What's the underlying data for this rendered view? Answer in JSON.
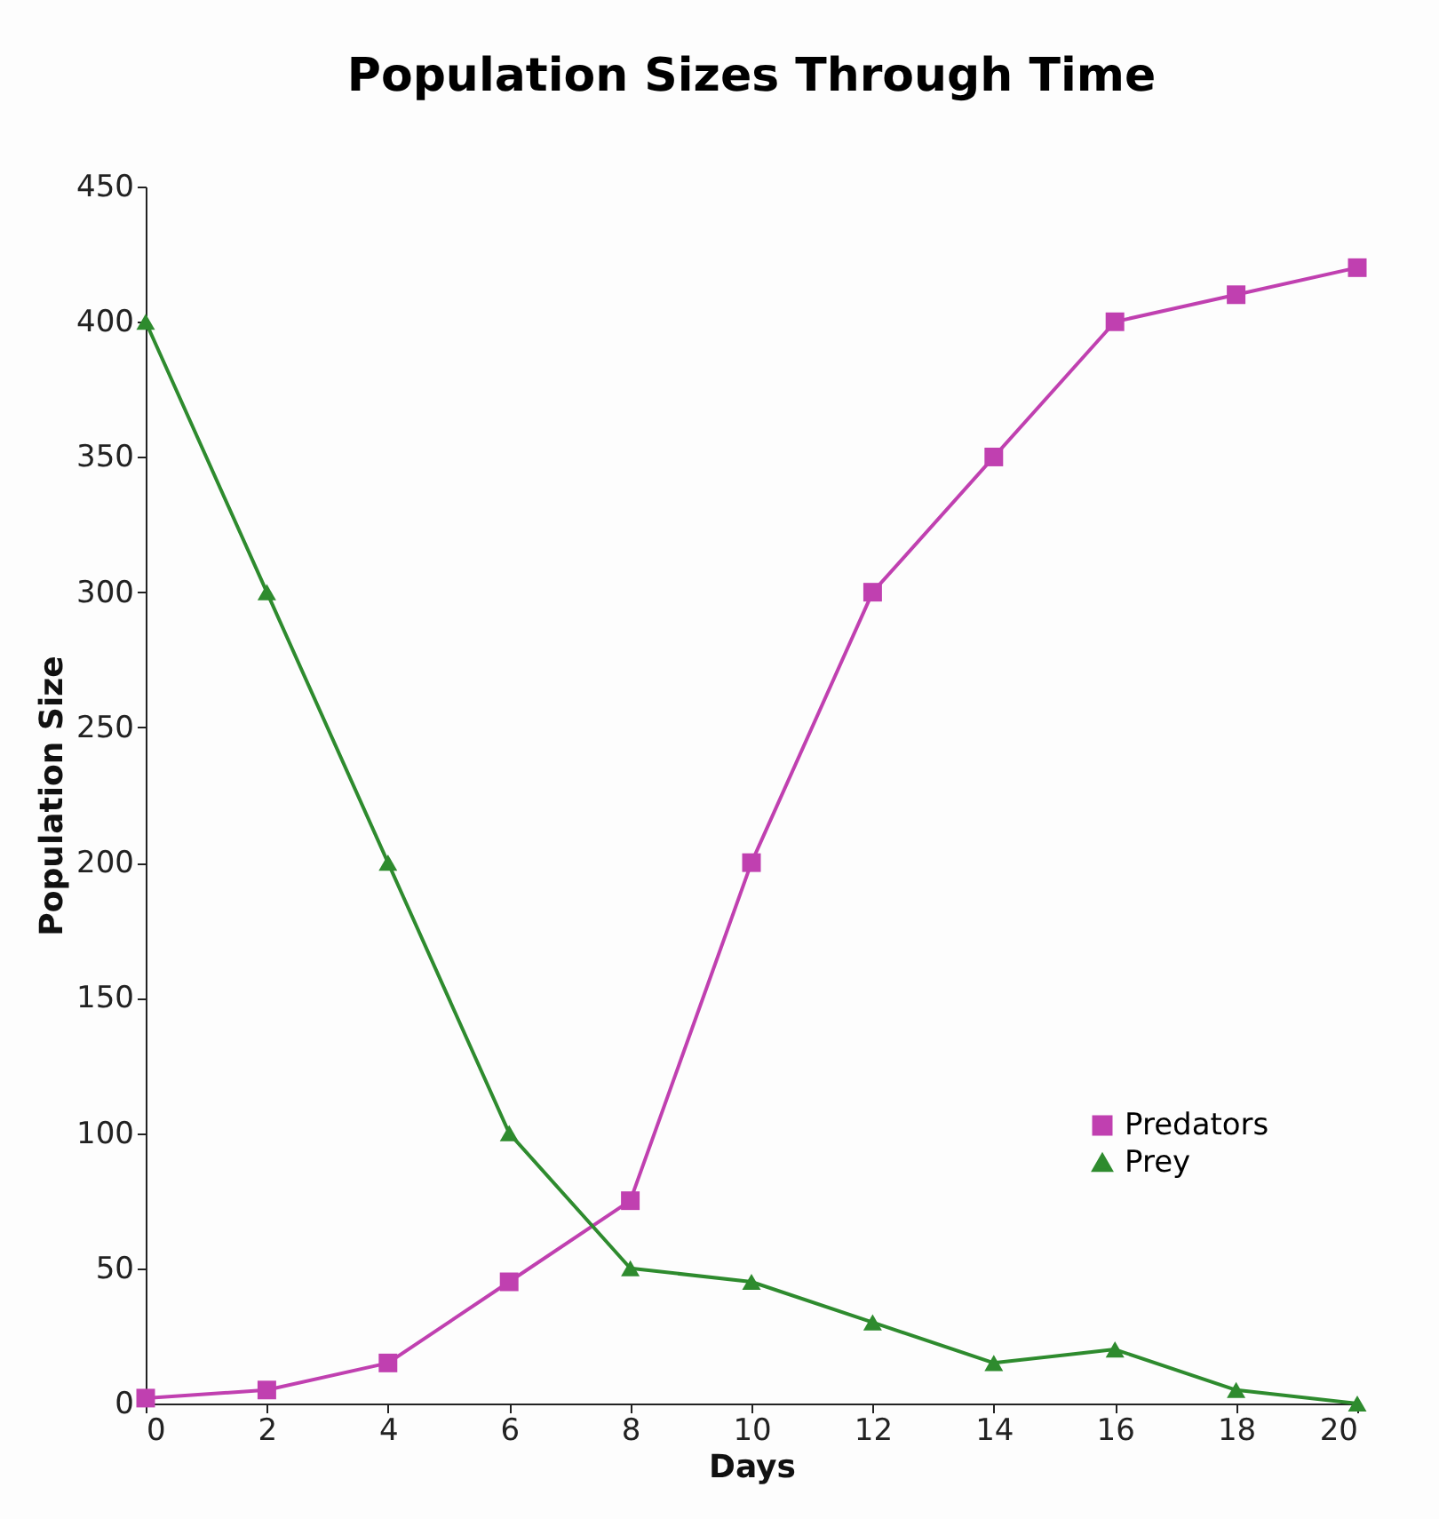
{
  "chart_data": {
    "type": "line",
    "title": "Population Sizes Through Time",
    "xlabel": "Days",
    "ylabel": "Population Size",
    "x": [
      0,
      2,
      4,
      6,
      8,
      10,
      12,
      14,
      16,
      18,
      20
    ],
    "series": [
      {
        "name": "Predators",
        "color": "#c040b0",
        "marker": "square",
        "values": [
          2,
          5,
          15,
          45,
          75,
          200,
          300,
          350,
          400,
          410,
          420
        ]
      },
      {
        "name": "Prey",
        "color": "#2e8b2e",
        "marker": "triangle",
        "values": [
          400,
          300,
          200,
          100,
          50,
          45,
          30,
          15,
          20,
          5,
          0
        ]
      }
    ],
    "xlim": [
      0,
      20
    ],
    "xticks": [
      0,
      2,
      4,
      6,
      8,
      10,
      12,
      14,
      16,
      18,
      20
    ],
    "ylim": [
      0,
      450
    ],
    "yticks": [
      0,
      50,
      100,
      150,
      200,
      250,
      300,
      350,
      400,
      450
    ],
    "grid": false,
    "legend": "right",
    "line_style": "solid"
  }
}
